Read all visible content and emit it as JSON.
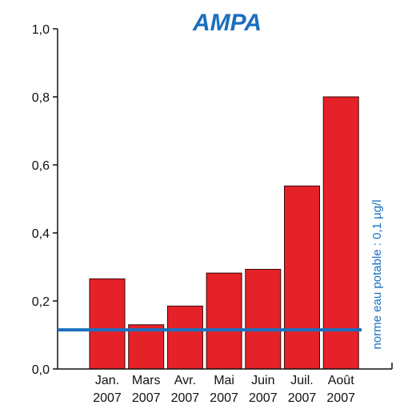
{
  "chart_data": {
    "type": "bar",
    "title": "AMPA",
    "categories": [
      [
        "Jan.",
        "2007"
      ],
      [
        "Mars",
        "2007"
      ],
      [
        "Avr.",
        "2007"
      ],
      [
        "Mai",
        "2007"
      ],
      [
        "Juin",
        "2007"
      ],
      [
        "Juil.",
        "2007"
      ],
      [
        "Août",
        "2007"
      ]
    ],
    "values": [
      0.265,
      0.13,
      0.185,
      0.282,
      0.293,
      0.538,
      0.8
    ],
    "ylim": [
      0,
      1.0
    ],
    "yticks": [
      0.0,
      0.2,
      0.4,
      0.6,
      0.8,
      1.0
    ],
    "ytick_labels": [
      "0,0",
      "0,2",
      "0,4",
      "0,6",
      "0,8",
      "1,0"
    ],
    "reference_line": {
      "value": 0.115,
      "label": "norme eau potable : 0,1 µg/l"
    },
    "grid": false,
    "colors": {
      "bar": "#e52228",
      "bar_edge": "#3a0a0a",
      "reference": "#1a6fbf",
      "title": "#1a6fbf",
      "axis": "#111111"
    }
  }
}
